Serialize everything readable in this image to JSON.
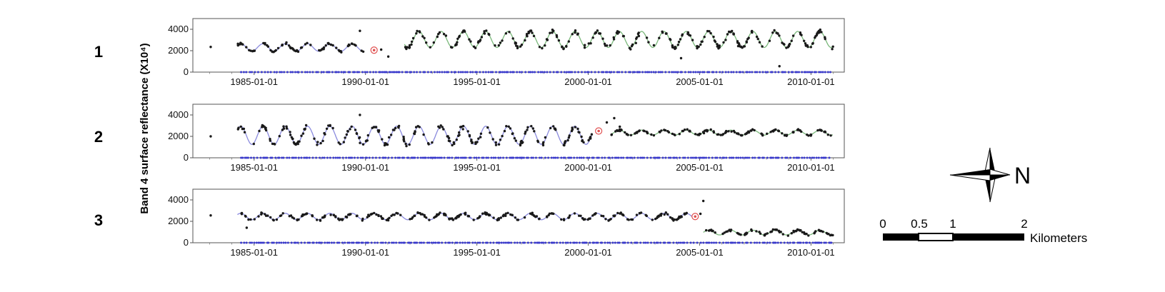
{
  "y_axis_title": "Band 4 surface reflectance (X10⁴)",
  "north_label": "N",
  "scale_bar": {
    "labels": [
      "0",
      "0.5",
      "1",
      "2"
    ],
    "unit": "Kilometers"
  },
  "colors": {
    "fit_pre": "#8a8ade",
    "fit_post": "#7ab87a",
    "points": "#1a1a1a",
    "clear_obs": "#3a3acc",
    "break_marker": "#e05050"
  },
  "chart_data": [
    {
      "type": "scatter",
      "panel_label": "1",
      "x_ticks": [
        "1985-01-01",
        "1990-01-01",
        "1995-01-01",
        "2000-01-01",
        "2005-01-01",
        "2010-01-01"
      ],
      "y_ticks": [
        "0",
        "2000",
        "4000"
      ],
      "xlim": [
        "1982-04-01",
        "2011-06-30"
      ],
      "ylim": [
        0,
        5000
      ],
      "break_date": "1990-05-20",
      "segments": [
        {
          "start": "1984-04-01",
          "end": "1989-12-01",
          "mean": 2300,
          "amp": 350,
          "color": "pre"
        },
        {
          "start": "1991-10-01",
          "end": "2010-12-31",
          "mean": 3050,
          "amp": 750,
          "color": "post"
        }
      ],
      "outliers": [
        [
          "1983-01-20",
          2350
        ],
        [
          "1989-10-01",
          3850
        ],
        [
          "1990-09-15",
          2100
        ],
        [
          "1991-01-10",
          1450
        ],
        [
          "2004-03-01",
          1300
        ],
        [
          "2008-08-01",
          550
        ]
      ]
    },
    {
      "type": "scatter",
      "panel_label": "2",
      "x_ticks": [
        "1985-01-01",
        "1990-01-01",
        "1995-01-01",
        "2000-01-01",
        "2005-01-01",
        "2010-01-01"
      ],
      "y_ticks": [
        "0",
        "2000",
        "4000"
      ],
      "xlim": [
        "1982-04-01",
        "2011-06-30"
      ],
      "ylim": [
        0,
        5000
      ],
      "break_date": "2000-06-20",
      "segments": [
        {
          "start": "1984-04-01",
          "end": "2000-03-01",
          "mean": 2100,
          "amp": 850,
          "color": "pre"
        },
        {
          "start": "2001-01-01",
          "end": "2010-12-31",
          "mean": 2350,
          "amp": 230,
          "color": "post"
        }
      ],
      "outliers": [
        [
          "1983-01-20",
          2000
        ],
        [
          "1989-10-01",
          4000
        ],
        [
          "2000-11-01",
          3300
        ],
        [
          "2001-03-01",
          3700
        ],
        [
          "2001-06-01",
          2900
        ]
      ]
    },
    {
      "type": "scatter",
      "panel_label": "3",
      "x_ticks": [
        "1985-01-01",
        "1990-01-01",
        "1995-01-01",
        "2000-01-01",
        "2005-01-01",
        "2010-01-01"
      ],
      "y_ticks": [
        "0",
        "2000",
        "4000"
      ],
      "xlim": [
        "1982-04-01",
        "2011-06-30"
      ],
      "ylim": [
        0,
        5000
      ],
      "break_date": "2004-10-20",
      "segments": [
        {
          "start": "1984-04-01",
          "end": "2004-09-01",
          "mean": 2450,
          "amp": 300,
          "color": "pre"
        },
        {
          "start": "2005-03-01",
          "end": "2010-12-31",
          "mean": 950,
          "amp": 220,
          "color": "post"
        }
      ],
      "outliers": [
        [
          "1983-01-20",
          2550
        ],
        [
          "1984-09-01",
          1400
        ],
        [
          "2005-03-01",
          3900
        ],
        [
          "2005-01-15",
          2700
        ]
      ]
    }
  ]
}
